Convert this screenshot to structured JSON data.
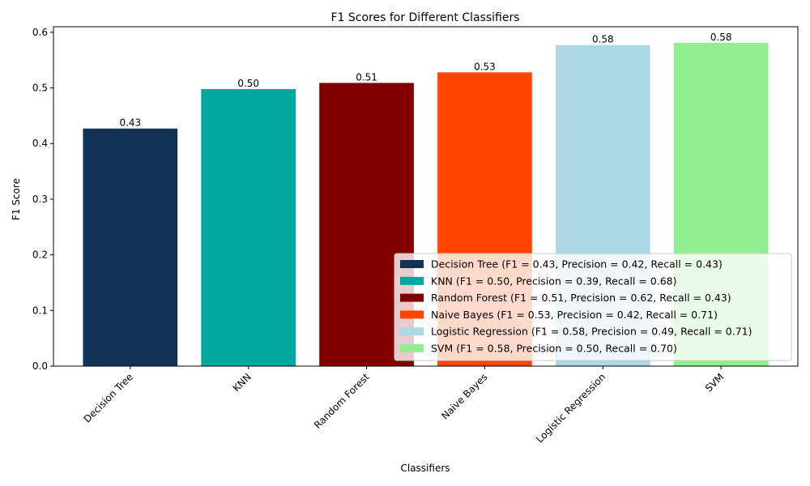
{
  "chart_data": {
    "type": "bar",
    "title": "F1 Scores for Different Classifiers",
    "xlabel": "Classifiers",
    "ylabel": "F1 Score",
    "ylim": [
      0,
      0.61
    ],
    "yticks": [
      "0.0",
      "0.1",
      "0.2",
      "0.3",
      "0.4",
      "0.5",
      "0.6"
    ],
    "grid": false,
    "legend_position": "lower-right",
    "categories": [
      "Decision Tree",
      "KNN",
      "Random Forest",
      "Naive Bayes",
      "Logistic Regression",
      "SVM"
    ],
    "values": [
      0.427,
      0.498,
      0.509,
      0.528,
      0.577,
      0.581
    ],
    "value_labels": [
      "0.43",
      "0.50",
      "0.51",
      "0.53",
      "0.58",
      "0.58"
    ],
    "colors": [
      "#113454",
      "#00a89d",
      "#800000",
      "#ff4500",
      "#add8e6",
      "#90ee90"
    ],
    "legend": [
      "Decision Tree (F1 = 0.43, Precision = 0.42, Recall = 0.43)",
      "KNN (F1 = 0.50, Precision = 0.39, Recall = 0.68)",
      "Random Forest (F1 = 0.51, Precision = 0.62, Recall = 0.43)",
      "Naive Bayes (F1 = 0.53, Precision = 0.42, Recall = 0.71)",
      "Logistic Regression (F1 = 0.58, Precision = 0.49, Recall = 0.71)",
      "SVM (F1 = 0.58, Precision = 0.50, Recall = 0.70)"
    ]
  }
}
